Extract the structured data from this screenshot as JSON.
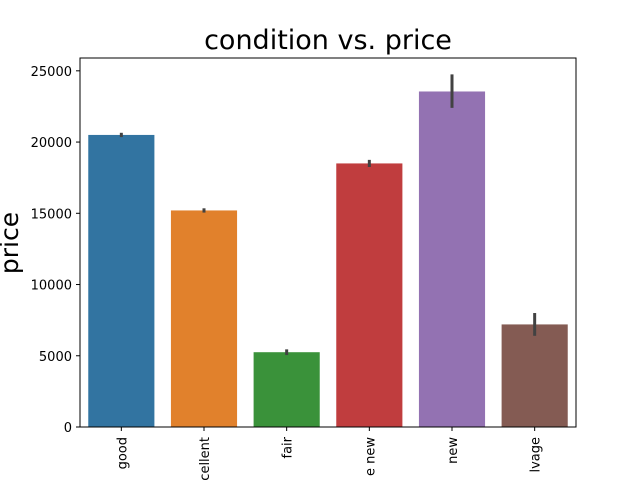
{
  "chart_data": {
    "type": "bar",
    "title": "condition vs. price",
    "xlabel": "",
    "ylabel": "price",
    "categories": [
      "good",
      "excellent",
      "fair",
      "like new",
      "new",
      "salvage"
    ],
    "visible_category_labels": [
      "good",
      "xcellent",
      "fair",
      "e new",
      "new",
      "lvage"
    ],
    "values": [
      20500,
      15200,
      5250,
      18500,
      23550,
      7200
    ],
    "error_low": [
      20350,
      15050,
      5050,
      18250,
      22400,
      6400
    ],
    "error_high": [
      20650,
      15350,
      5450,
      18750,
      24750,
      8000
    ],
    "colors": [
      "#3274a1",
      "#e1812c",
      "#3a923a",
      "#c03d3e",
      "#9372b2",
      "#845b53"
    ],
    "error_color": "#424242",
    "ylim": [
      0,
      25900
    ],
    "yticks": [
      0,
      5000,
      10000,
      15000,
      20000,
      25000
    ],
    "ytick_labels": [
      "0",
      "5000",
      "10000",
      "15000",
      "20000",
      "25000"
    ],
    "grid": false,
    "legend": "none"
  }
}
